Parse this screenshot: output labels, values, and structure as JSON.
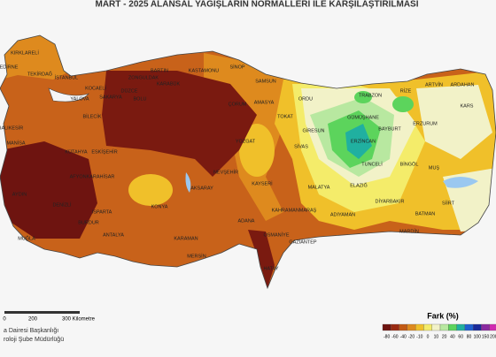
{
  "title": "MART - 2025 ALANSAL YAĞIŞLARIN NORMALLERİ İLE KARŞILAŞTIRILMASI",
  "provinces": [
    "KIRKLARELİ",
    "EDİRNE",
    "TEKİRDAĞ",
    "İSTANBUL",
    "KOCAELİ",
    "SAKARYA",
    "DÜZCE",
    "BOLU",
    "ZONGULDAK",
    "BARTIN",
    "KARABÜK",
    "KASTAMONU",
    "SİNOP",
    "SAMSUN",
    "AMASYA",
    "ÇORUM",
    "TOKAT",
    "ORDU",
    "GİRESUN",
    "TRABZON",
    "RİZE",
    "ARTVİN",
    "ARDAHAN",
    "KARS",
    "ERZURUM",
    "GÜMÜŞHANE",
    "BAYBURT",
    "ERZİNCAN",
    "TUNCELİ",
    "BİNGÖL",
    "MUŞ",
    "ELAZIĞ",
    "MALATYA",
    "SİVAS",
    "YOZGAT",
    "KAYSERİ",
    "NEVŞEHİR",
    "AKSARAY",
    "KONYA",
    "KARAMAN",
    "MERSİN",
    "ADANA",
    "OSMANİYE",
    "GAZİANTEP",
    "ADIYAMAN",
    "DİYARBAKIR",
    "MARDİN",
    "BATMAN",
    "SİİRT",
    "KAHRAMANMARAŞ",
    "BURDUR",
    "ISPARTA",
    "ANTALYA",
    "AFYONKARAHİSAR",
    "KÜTAHYA",
    "ESKİŞEHİR",
    "BİLECİK",
    "YALOVA",
    "BALIKESİR",
    "MANİSA",
    "AYDIN",
    "DENİZLİ",
    "MUĞLA",
    "HATAY"
  ],
  "scale": {
    "labels": [
      "0",
      "200",
      "300 Kilometre"
    ]
  },
  "organization": [
    "a Dairesi Başkanlığı",
    "roloji Şube Müdürlüğü"
  ],
  "legend": {
    "title": "Fark (%)",
    "items": [
      {
        "label": "-80",
        "color": "#6e1410"
      },
      {
        "label": "-60",
        "color": "#9a2a12"
      },
      {
        "label": "-40",
        "color": "#c35a14"
      },
      {
        "label": "-20",
        "color": "#de8a1e"
      },
      {
        "label": "-10",
        "color": "#f0c02a"
      },
      {
        "label": "0",
        "color": "#f4ec6a"
      },
      {
        "label": "10",
        "color": "#f2f2c8"
      },
      {
        "label": "20",
        "color": "#b8e8a0"
      },
      {
        "label": "40",
        "color": "#5cd45c"
      },
      {
        "label": "60",
        "color": "#20b0a0"
      },
      {
        "label": "80",
        "color": "#2060d0"
      },
      {
        "label": "100",
        "color": "#1a2a9a"
      },
      {
        "label": "150",
        "color": "#8a2aa0"
      },
      {
        "label": "200",
        "color": "#d02ab0"
      }
    ]
  }
}
